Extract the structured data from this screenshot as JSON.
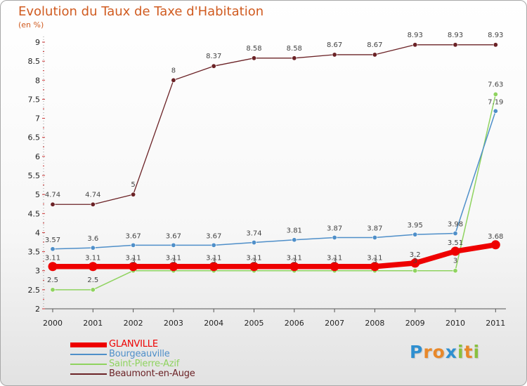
{
  "header": {
    "title": "Evolution du Taux de Taxe d'Habitation",
    "unit": "(en %)"
  },
  "logo": {
    "letters": [
      {
        "ch": "P",
        "color": "#2f8fd0"
      },
      {
        "ch": "r",
        "color": "#e8882a"
      },
      {
        "ch": "o",
        "color": "#e8882a"
      },
      {
        "ch": "x",
        "color": "#2f8fd0"
      },
      {
        "ch": "i",
        "color": "#89c03f"
      },
      {
        "ch": "t",
        "color": "#e8882a"
      },
      {
        "ch": "i",
        "color": "#89c03f"
      }
    ]
  },
  "chart_data": {
    "type": "line",
    "title": "Evolution du Taux de Taxe d'Habitation",
    "ylabel": "(en %)",
    "xlabel": "",
    "categories": [
      "2000",
      "2001",
      "2002",
      "2003",
      "2004",
      "2005",
      "2006",
      "2007",
      "2008",
      "2009",
      "2010",
      "2011"
    ],
    "ylim": [
      2,
      9
    ],
    "yticks": [
      "2",
      "2.5",
      "3",
      "3.5",
      "4",
      "4.5",
      "5",
      "5.5",
      "6",
      "6.5",
      "7",
      "7.5",
      "8",
      "8.5",
      "9"
    ],
    "grid": false,
    "legend_position": "bottom-left",
    "series": [
      {
        "name": "GLANVILLE",
        "color": "#ee0000",
        "values": [
          3.11,
          3.11,
          3.11,
          3.11,
          3.11,
          3.11,
          3.11,
          3.11,
          3.11,
          3.2,
          3.51,
          3.68
        ],
        "labels": [
          "3.11",
          "3.11",
          "3.11",
          "3.11",
          "3.11",
          "3.11",
          "3.11",
          "3.11",
          "3.11",
          "3.2",
          "3.51",
          "3.68"
        ]
      },
      {
        "name": "Bourgeauville",
        "color": "#4f8fc9",
        "values": [
          3.57,
          3.6,
          3.67,
          3.67,
          3.67,
          3.74,
          3.81,
          3.87,
          3.87,
          3.95,
          3.98,
          7.19
        ],
        "labels": [
          "3.57",
          "3.6",
          "3.67",
          "3.67",
          "3.67",
          "3.74",
          "3.81",
          "3.87",
          "3.87",
          "3.95",
          "3.98",
          "7.19"
        ]
      },
      {
        "name": "Saint-Pierre-Azif",
        "color": "#8fd35f",
        "values": [
          2.5,
          2.5,
          3,
          3,
          3,
          3,
          3,
          3,
          3,
          3,
          3,
          7.63
        ],
        "labels": [
          "2.5",
          "2.5",
          "3",
          "3",
          "3",
          "3",
          "3",
          "3",
          "3",
          "3",
          "3",
          "7.63"
        ]
      },
      {
        "name": "Beaumont-en-Auge",
        "color": "#6b2226",
        "values": [
          4.74,
          4.74,
          5,
          8,
          8.37,
          8.58,
          8.58,
          8.67,
          8.67,
          8.93,
          8.93,
          8.93
        ],
        "labels": [
          "4.74",
          "4.74",
          "5",
          "8",
          "8.37",
          "8.58",
          "8.58",
          "8.67",
          "8.67",
          "8.93",
          "8.93",
          "8.93"
        ]
      }
    ]
  }
}
